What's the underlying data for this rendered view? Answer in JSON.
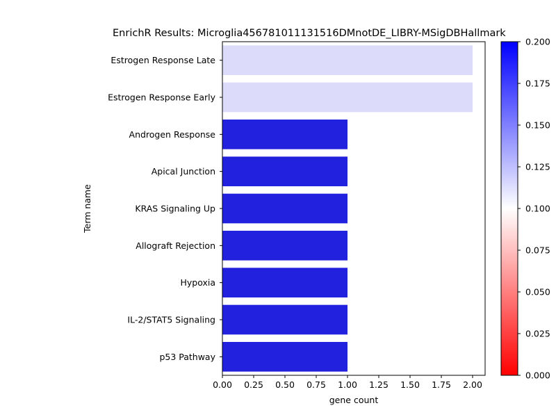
{
  "chart_data": {
    "type": "bar",
    "orientation": "horizontal",
    "title": "EnrichR Results: Microglia456781011131516DMnotDE_LIBRY-MSigDBHallmark",
    "xlabel": "gene count",
    "ylabel": "Term name",
    "xlim": [
      0,
      2.1
    ],
    "xticks": [
      "0.00",
      "0.25",
      "0.50",
      "0.75",
      "1.00",
      "1.25",
      "1.50",
      "1.75",
      "2.00"
    ],
    "categories": [
      "Estrogen Response Late",
      "Estrogen Response Early",
      "Androgen Response",
      "Apical Junction",
      "KRAS Signaling Up",
      "Allograft Rejection",
      "Hypoxia",
      "IL-2/STAT5 Signaling",
      "p53 Pathway"
    ],
    "values": [
      2,
      2,
      1,
      1,
      1,
      1,
      1,
      1,
      1
    ],
    "bar_colors": [
      "#dcdcfa",
      "#dcdcfa",
      "#2222de",
      "#2222de",
      "#2222de",
      "#2222de",
      "#2222de",
      "#2222de",
      "#2222de"
    ],
    "grid": false,
    "colorbar": {
      "range": [
        0,
        0.2
      ],
      "ticks": [
        "0.000",
        "0.025",
        "0.050",
        "0.075",
        "0.100",
        "0.125",
        "0.150",
        "0.175",
        "0.200"
      ],
      "colors": [
        "#ff0000",
        "#ffffff",
        "#0000ff"
      ]
    }
  }
}
